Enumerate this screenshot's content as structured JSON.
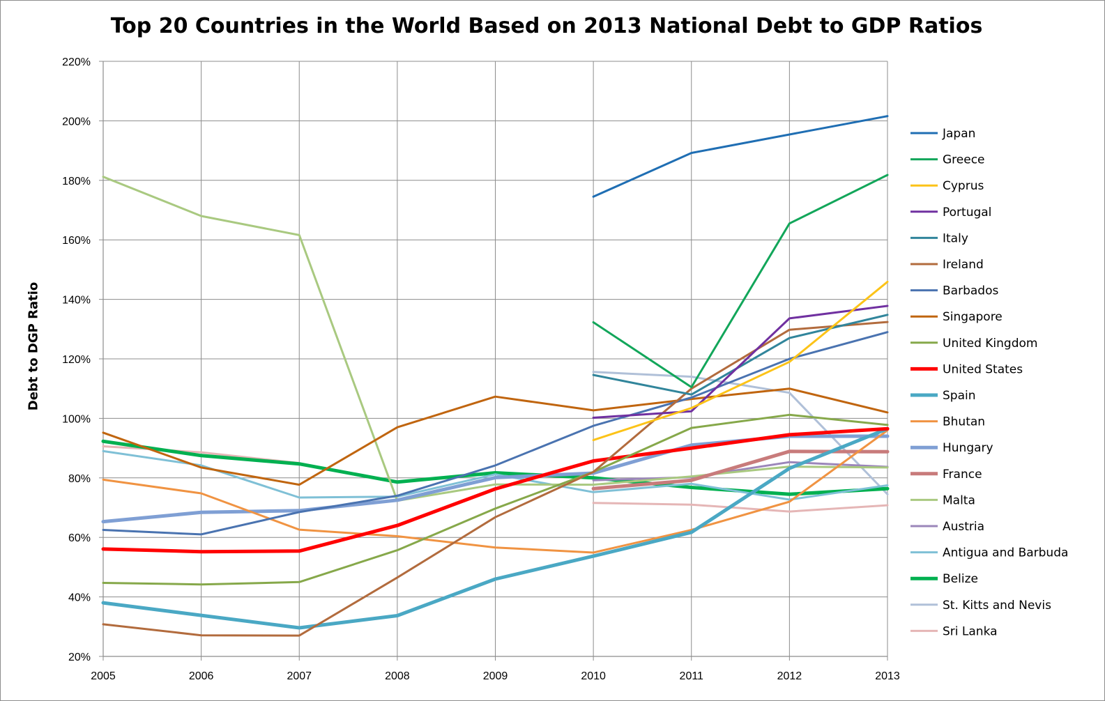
{
  "chart_data": {
    "type": "line",
    "title": "Top 20 Countries in the World Based on 2013 National Debt to GDP Ratios",
    "xlabel": "",
    "ylabel": "Debt to DGP Ratio",
    "x": [
      2005,
      2006,
      2007,
      2008,
      2009,
      2010,
      2011,
      2012,
      2013
    ],
    "x_tick_labels": [
      "2005",
      "2006",
      "2007",
      "2008",
      "2009",
      "2010",
      "2011",
      "2012",
      "2013"
    ],
    "y_tick_labels": [
      "20%",
      "40%",
      "60%",
      "80%",
      "100%",
      "120%",
      "140%",
      "160%",
      "180%",
      "200%",
      "220%"
    ],
    "ylim": [
      20,
      220
    ],
    "y_unit": "%",
    "grid": true,
    "legend_position": "right",
    "series": [
      {
        "name": "Japan",
        "color": "#1f6eb3",
        "width": 3,
        "values": [
          null,
          null,
          null,
          null,
          null,
          174.5,
          189.2,
          195.4,
          201.6
        ]
      },
      {
        "name": "Greece",
        "color": "#12a65a",
        "width": 3,
        "values": [
          null,
          null,
          null,
          null,
          null,
          132.3,
          110.5,
          165.5,
          181.8
        ]
      },
      {
        "name": "Cyprus",
        "color": "#fcc318",
        "width": 3,
        "values": [
          null,
          null,
          null,
          null,
          null,
          92.7,
          103.5,
          119.0,
          145.9
        ]
      },
      {
        "name": "Portugal",
        "color": "#7030a0",
        "width": 3,
        "values": [
          null,
          null,
          null,
          null,
          null,
          100.2,
          102.4,
          133.6,
          137.8
        ]
      },
      {
        "name": "Italy",
        "color": "#31859b",
        "width": 3,
        "values": [
          null,
          null,
          null,
          null,
          null,
          114.6,
          108.0,
          127.0,
          134.8
        ]
      },
      {
        "name": "Ireland",
        "color": "#b26b3d",
        "width": 3,
        "values": [
          30.8,
          27.1,
          27.0,
          46.5,
          66.8,
          82.0,
          110.0,
          129.8,
          132.4
        ]
      },
      {
        "name": "Barbados",
        "color": "#4a73b0",
        "width": 3,
        "values": [
          62.5,
          61.0,
          68.5,
          74.0,
          84.2,
          97.5,
          107.0,
          120.0,
          129.0
        ]
      },
      {
        "name": "Singapore",
        "color": "#c0650f",
        "width": 3,
        "values": [
          95.2,
          83.5,
          77.7,
          97.0,
          107.3,
          102.7,
          106.5,
          110.0,
          102.0
        ]
      },
      {
        "name": "United Kingdom",
        "color": "#86a84a",
        "width": 3,
        "values": [
          44.7,
          44.2,
          45.0,
          55.7,
          69.7,
          82.0,
          96.8,
          101.2,
          97.8
        ]
      },
      {
        "name": "United States",
        "color": "#ff0000",
        "width": 5,
        "values": [
          56.1,
          55.2,
          55.4,
          64.0,
          76.3,
          85.7,
          90.0,
          94.5,
          96.5
        ]
      },
      {
        "name": "Spain",
        "color": "#4aa8c4",
        "width": 5,
        "values": [
          38.0,
          33.8,
          29.6,
          33.7,
          46.0,
          53.7,
          61.7,
          83.2,
          96.5
        ]
      },
      {
        "name": "Bhutan",
        "color": "#f09342",
        "width": 3,
        "values": [
          79.4,
          74.8,
          62.6,
          60.4,
          56.6,
          54.9,
          62.5,
          72.0,
          96.0
        ]
      },
      {
        "name": "Hungary",
        "color": "#7f9fd4",
        "width": 5,
        "values": [
          65.3,
          68.4,
          69.0,
          72.5,
          80.1,
          81.6,
          91.0,
          94.0,
          94.0
        ]
      },
      {
        "name": "France",
        "color": "#c87b7b",
        "width": 5,
        "values": [
          null,
          null,
          null,
          null,
          null,
          76.4,
          79.2,
          88.9,
          88.8
        ]
      },
      {
        "name": "Malta",
        "color": "#a9c980",
        "width": 3,
        "values": [
          181.2,
          168.0,
          161.6,
          72.3,
          77.8,
          77.7,
          80.5,
          83.8,
          83.5
        ]
      },
      {
        "name": "Austria",
        "color": "#9b86ba",
        "width": 3,
        "values": [
          null,
          null,
          null,
          null,
          null,
          79.2,
          80.2,
          85.3,
          83.7
        ]
      },
      {
        "name": "Antigua and Barbuda",
        "color": "#7fc0d6",
        "width": 3,
        "values": [
          89.0,
          84.2,
          73.4,
          73.7,
          81.2,
          75.2,
          78.0,
          72.7,
          77.5
        ]
      },
      {
        "name": "Belize",
        "color": "#00b050",
        "width": 5,
        "values": [
          92.3,
          87.5,
          84.7,
          78.6,
          81.7,
          80.0,
          76.8,
          74.5,
          76.4
        ]
      },
      {
        "name": "St. Kitts and Nevis",
        "color": "#b0c0d8",
        "width": 3,
        "values": [
          null,
          null,
          null,
          null,
          null,
          115.6,
          114.0,
          108.6,
          74.5
        ]
      },
      {
        "name": "Sri Lanka",
        "color": "#e5b6b6",
        "width": 3,
        "values": [
          90.6,
          88.6,
          85.0,
          null,
          null,
          71.6,
          71.0,
          68.7,
          70.8
        ]
      }
    ]
  }
}
